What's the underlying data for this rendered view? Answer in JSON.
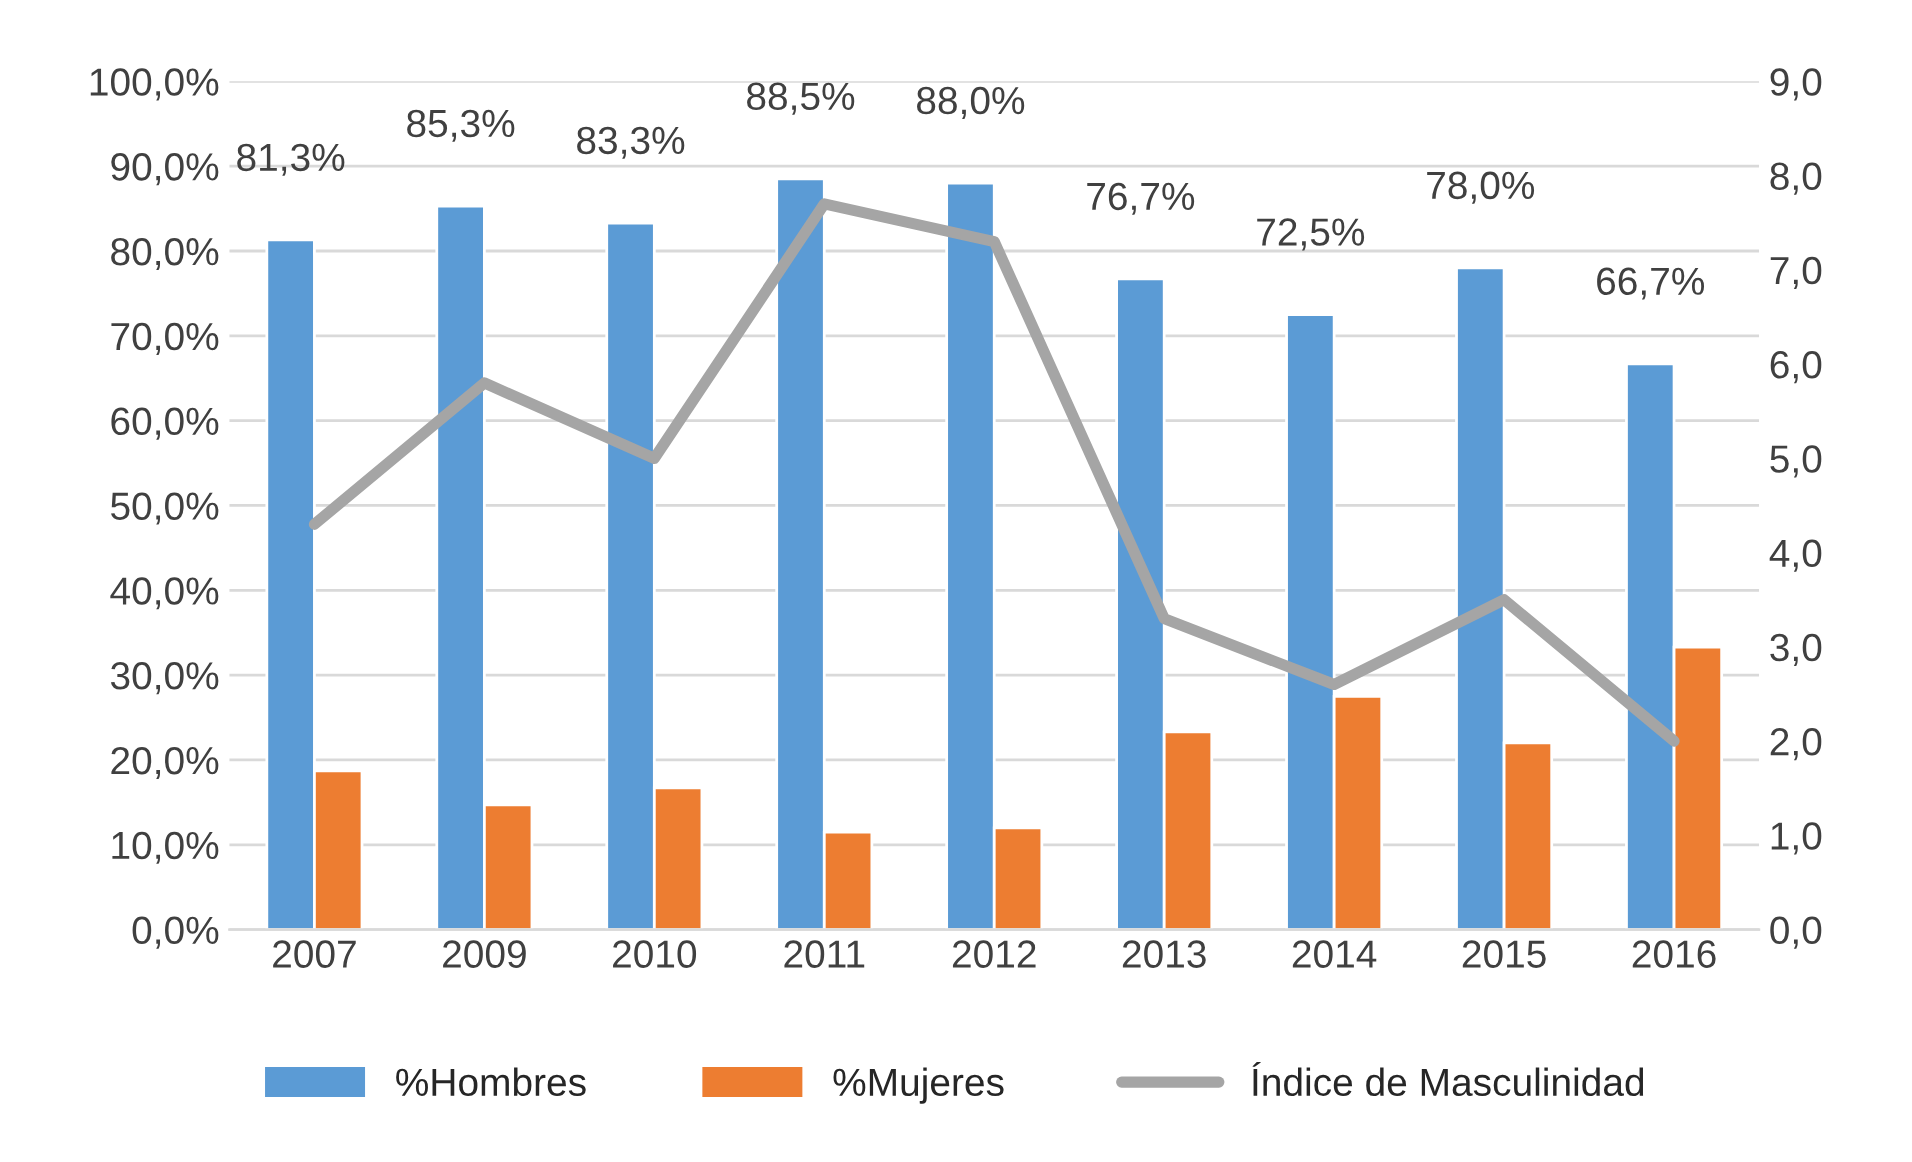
{
  "chart_data": {
    "type": "bar",
    "categories": [
      "2007",
      "2009",
      "2010",
      "2011",
      "2012",
      "2013",
      "2014",
      "2015",
      "2016"
    ],
    "series": [
      {
        "name": "%Hombres",
        "color": "#5b9bd5",
        "values": [
          81.3,
          85.3,
          83.3,
          88.5,
          88.0,
          76.7,
          72.5,
          78.0,
          66.7
        ],
        "value_labels": [
          "81,3%",
          "85,3%",
          "83,3%",
          "88,5%",
          "88,0%",
          "76,7%",
          "72,5%",
          "78,0%",
          "66,7%"
        ]
      },
      {
        "name": "%Mujeres",
        "color": "#ed7d31",
        "values": [
          18.7,
          14.7,
          16.7,
          11.5,
          12.0,
          23.3,
          27.5,
          22.0,
          33.3
        ]
      },
      {
        "name": "Índice de Masculinidad",
        "type": "line",
        "axis": "y2",
        "color": "#a5a5a5",
        "values": [
          4.3,
          5.8,
          5.0,
          7.7,
          7.3,
          3.3,
          2.6,
          3.5,
          2.0
        ]
      }
    ],
    "ylim": [
      0,
      100
    ],
    "yticks": [
      {
        "value": 0,
        "label": "0,0%"
      },
      {
        "value": 10,
        "label": "10,0%"
      },
      {
        "value": 20,
        "label": "20,0%"
      },
      {
        "value": 30,
        "label": "30,0%"
      },
      {
        "value": 40,
        "label": "40,0%"
      },
      {
        "value": 50,
        "label": "50,0%"
      },
      {
        "value": 60,
        "label": "60,0%"
      },
      {
        "value": 70,
        "label": "70,0%"
      },
      {
        "value": 80,
        "label": "80,0%"
      },
      {
        "value": 90,
        "label": "90,0%"
      },
      {
        "value": 100,
        "label": "100,0%"
      }
    ],
    "y2lim": [
      0,
      9
    ],
    "y2ticks": [
      {
        "value": 0,
        "label": "0,0"
      },
      {
        "value": 1,
        "label": "1,0"
      },
      {
        "value": 2,
        "label": "2,0"
      },
      {
        "value": 3,
        "label": "3,0"
      },
      {
        "value": 4,
        "label": "4,0"
      },
      {
        "value": 5,
        "label": "5,0"
      },
      {
        "value": 6,
        "label": "6,0"
      },
      {
        "value": 7,
        "label": "7,0"
      },
      {
        "value": 8,
        "label": "8,0"
      },
      {
        "value": 9,
        "label": "9,0"
      }
    ],
    "grid": "y",
    "legend": "bottom",
    "line_style": "solid",
    "marker": "none"
  }
}
